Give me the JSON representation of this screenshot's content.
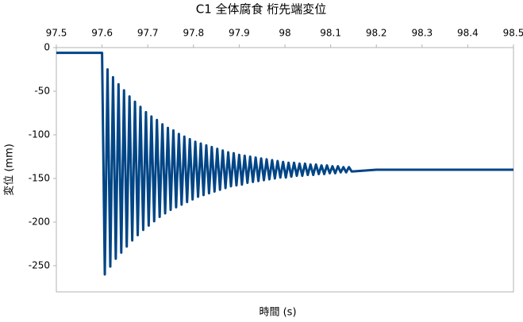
{
  "chart_data": {
    "type": "line",
    "title": "C1 全体腐食 桁先端変位",
    "x_label": "時間 (s)",
    "y_label": "変位 (mm)",
    "xlim": [
      97.5,
      98.5
    ],
    "xticks": [
      97.5,
      97.6,
      97.7,
      97.8,
      97.9,
      98,
      98.1,
      98.2,
      98.3,
      98.4,
      98.5
    ],
    "ylim": [
      -280,
      0
    ],
    "yticks": [
      0,
      -50,
      -100,
      -150,
      -200,
      -250
    ],
    "grid": false,
    "series": [
      {
        "color": "#004586",
        "x": [
          97.5,
          97.6,
          97.606,
          97.612,
          97.618,
          97.624,
          97.63,
          97.636,
          97.642,
          97.648,
          97.654,
          97.66,
          97.666,
          97.672,
          97.678,
          97.684,
          97.69,
          97.696,
          97.702,
          97.708,
          97.714,
          97.72,
          97.726,
          97.732,
          97.738,
          97.744,
          97.75,
          97.756,
          97.762,
          97.768,
          97.774,
          97.78,
          97.786,
          97.792,
          97.798,
          97.804,
          97.81,
          97.816,
          97.822,
          97.828,
          97.834,
          97.84,
          97.846,
          97.852,
          97.858,
          97.864,
          97.87,
          97.876,
          97.882,
          97.888,
          97.894,
          97.9,
          97.906,
          97.912,
          97.918,
          97.924,
          97.93,
          97.936,
          97.942,
          97.948,
          97.954,
          97.96,
          97.966,
          97.972,
          97.978,
          97.984,
          97.99,
          97.996,
          98.002,
          98.008,
          98.014,
          98.02,
          98.026,
          98.032,
          98.038,
          98.044,
          98.05,
          98.056,
          98.062,
          98.068,
          98.074,
          98.08,
          98.086,
          98.092,
          98.098,
          98.104,
          98.11,
          98.116,
          98.122,
          98.128,
          98.134,
          98.14,
          98.146,
          98.2,
          98.3,
          98.4,
          98.5
        ],
        "values": [
          -6,
          -6,
          -260,
          -25,
          -251,
          -34,
          -242,
          -42,
          -235,
          -49,
          -228,
          -56,
          -221,
          -62,
          -215,
          -68,
          -209,
          -74,
          -204,
          -79,
          -199,
          -83,
          -194,
          -88,
          -190,
          -92,
          -186,
          -95,
          -183,
          -99,
          -180,
          -102,
          -177,
          -105,
          -174,
          -108,
          -171,
          -110,
          -169,
          -112,
          -167,
          -114,
          -165,
          -116,
          -163,
          -118,
          -161,
          -120,
          -159,
          -121,
          -158,
          -123,
          -157,
          -124,
          -155,
          -125,
          -154,
          -126,
          -153,
          -127,
          -152,
          -128,
          -151,
          -129,
          -150,
          -130,
          -149,
          -131,
          -149,
          -132,
          -148,
          -132,
          -147,
          -133,
          -147,
          -133,
          -146,
          -134,
          -146,
          -134,
          -145,
          -135,
          -145,
          -135,
          -144,
          -136,
          -144,
          -136,
          -143,
          -137,
          -143,
          -137,
          -142,
          -140,
          -140,
          -140,
          -140
        ]
      }
    ]
  }
}
